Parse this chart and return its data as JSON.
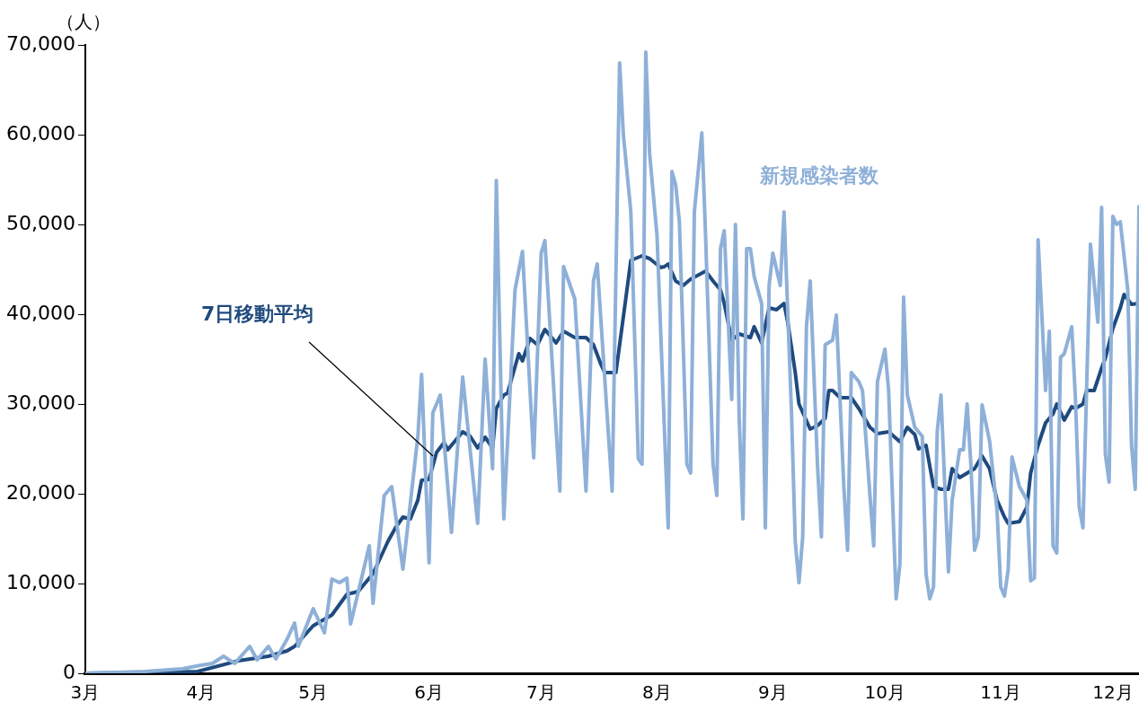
{
  "chart_data": {
    "type": "line",
    "ylabel": "（人）",
    "legend": false,
    "grid": false,
    "marker": "none",
    "line_style": "solid",
    "xlim": [
      "--03-01",
      "--12-08"
    ],
    "xticks": [
      {
        "value": "--03-01",
        "label": "3月"
      },
      {
        "value": "--04-01",
        "label": "4月"
      },
      {
        "value": "--05-01",
        "label": "5月"
      },
      {
        "value": "--06-01",
        "label": "6月"
      },
      {
        "value": "--07-01",
        "label": "7月"
      },
      {
        "value": "--08-01",
        "label": "8月"
      },
      {
        "value": "--09-01",
        "label": "9月"
      },
      {
        "value": "--10-01",
        "label": "10月"
      },
      {
        "value": "--11-01",
        "label": "11月"
      },
      {
        "value": "--12-01",
        "label": "12月"
      }
    ],
    "ylim": [
      0,
      70000
    ],
    "yticks": [
      0,
      {
        "value": 10000,
        "label": "10,000"
      },
      {
        "value": 20000,
        "label": "20,000"
      },
      {
        "value": 30000,
        "label": "30,000"
      },
      {
        "value": 40000,
        "label": "40,000"
      },
      {
        "value": 50000,
        "label": "50,000"
      },
      {
        "value": 60000,
        "label": "60,000"
      },
      {
        "value": 70000,
        "label": "70,000"
      }
    ],
    "series": [
      {
        "name": "新規感染者数",
        "color": "#8eb0d8",
        "x": [
          "--03-01",
          "--03-17",
          "--03-27",
          "--04-01",
          "--04-04",
          "--04-07",
          "--04-10",
          "--04-14",
          "--04-16",
          "--04-19",
          "--04-21",
          "--04-24",
          "--04-26",
          "--04-27",
          "--05-01",
          "--05-04",
          "--05-06",
          "--05-08",
          "--05-10",
          "--05-11",
          "--05-16",
          "--05-17",
          "--05-20",
          "--05-22",
          "--05-25",
          "--05-29",
          "--05-30",
          "--06-01",
          "--06-02",
          "--06-04",
          "--06-07",
          "--06-10",
          "--06-14",
          "--06-16",
          "--06-18",
          "--06-19",
          "--06-21",
          "--06-24",
          "--06-26",
          "--06-29",
          "--07-01",
          "--07-02",
          "--07-06",
          "--07-07",
          "--07-10",
          "--07-13",
          "--07-15",
          "--07-16",
          "--07-20",
          "--07-22",
          "--07-23",
          "--07-25",
          "--07-27",
          "--07-28",
          "--07-29",
          "--07-30",
          "--08-01",
          "--08-04",
          "--08-05",
          "--08-06",
          "--08-07",
          "--08-09",
          "--08-10",
          "--08-11",
          "--08-13",
          "--08-14",
          "--08-16",
          "--08-17",
          "--08-18",
          "--08-19",
          "--08-21",
          "--08-22",
          "--08-23",
          "--08-24",
          "--08-25",
          "--08-26",
          "--08-27",
          "--08-29",
          "--08-30",
          "--08-31",
          "--09-01",
          "--09-03",
          "--09-04",
          "--09-06",
          "--09-07",
          "--09-08",
          "--09-09",
          "--09-10",
          "--09-11",
          "--09-13",
          "--09-14",
          "--09-15",
          "--09-17",
          "--09-18",
          "--09-20",
          "--09-21",
          "--09-22",
          "--09-24",
          "--09-25",
          "--09-27",
          "--09-28",
          "--09-29",
          "--10-01",
          "--10-02",
          "--10-04",
          "--10-05",
          "--10-06",
          "--10-07",
          "--10-09",
          "--10-11",
          "--10-12",
          "--10-13",
          "--10-14",
          "--10-15",
          "--10-16",
          "--10-18",
          "--10-19",
          "--10-21",
          "--10-22",
          "--10-23",
          "--10-24",
          "--10-25",
          "--10-26",
          "--10-27",
          "--10-29",
          "--10-31",
          "--11-01",
          "--11-02",
          "--11-03",
          "--11-04",
          "--11-06",
          "--11-08",
          "--11-09",
          "--11-10",
          "--11-11",
          "--11-13",
          "--11-14",
          "--11-15",
          "--11-16",
          "--11-17",
          "--11-18",
          "--11-20",
          "--11-21",
          "--11-22",
          "--11-23",
          "--11-25",
          "--11-27",
          "--11-28",
          "--11-29",
          "--11-30",
          "--12-01",
          "--12-02",
          "--12-03",
          "--12-05",
          "--12-06",
          "--12-07",
          "--12-08"
        ],
        "values": [
          0,
          200,
          500,
          900,
          1100,
          1900,
          1100,
          3000,
          1500,
          3000,
          1600,
          3800,
          5600,
          3000,
          7200,
          4500,
          10500,
          10100,
          10600,
          5500,
          14200,
          7800,
          19800,
          20800,
          11600,
          26400,
          33300,
          12300,
          29000,
          31000,
          15700,
          33000,
          16700,
          35000,
          22800,
          54900,
          17200,
          42700,
          47000,
          24000,
          46800,
          48200,
          20300,
          45300,
          41700,
          20300,
          43700,
          45600,
          20300,
          68000,
          60000,
          51400,
          23900,
          23300,
          69200,
          58000,
          48800,
          16200,
          55900,
          54400,
          50300,
          23300,
          22300,
          51400,
          60200,
          48800,
          23300,
          19800,
          47300,
          49300,
          30500,
          50000,
          28400,
          17200,
          47300,
          47300,
          44200,
          41200,
          16200,
          43200,
          46800,
          43200,
          51400,
          29000,
          14700,
          10100,
          15200,
          38600,
          43700,
          22800,
          15200,
          36600,
          37100,
          39900,
          20800,
          13700,
          33500,
          32500,
          31500,
          19800,
          14200,
          32500,
          36100,
          31500,
          8300,
          12100,
          41900,
          31000,
          27400,
          26400,
          11100,
          8300,
          9600,
          26900,
          31000,
          11300,
          19300,
          24900,
          24900,
          30000,
          23300,
          13700,
          15200,
          29900,
          25900,
          18200,
          9600,
          8600,
          11600,
          24100,
          20800,
          19300,
          10300,
          10600,
          48300,
          31500,
          38100,
          14200,
          13400,
          35200,
          35600,
          38600,
          30500,
          18500,
          16200,
          47800,
          39100,
          51900,
          24400,
          21300,
          50900,
          50000,
          50300,
          42700,
          25400,
          20500,
          52000
        ]
      },
      {
        "name": "7日移動平均",
        "color": "#1f4a7e",
        "x": [
          "--03-01",
          "--03-31",
          "--04-11",
          "--04-19",
          "--04-24",
          "--04-26",
          "--05-01",
          "--05-06",
          "--05-10",
          "--05-13",
          "--05-17",
          "--05-21",
          "--05-23",
          "--05-25",
          "--05-27",
          "--05-29",
          "--05-30",
          "--06-01",
          "--06-03",
          "--06-05",
          "--06-06",
          "--06-10",
          "--06-12",
          "--06-14",
          "--06-16",
          "--06-18",
          "--06-19",
          "--06-21",
          "--06-22",
          "--06-25",
          "--06-26",
          "--06-28",
          "--06-30",
          "--07-02",
          "--07-05",
          "--07-07",
          "--07-10",
          "--07-13",
          "--07-15",
          "--07-17",
          "--07-18",
          "--07-21",
          "--07-23",
          "--07-25",
          "--07-28",
          "--07-30",
          "--08-02",
          "--08-03",
          "--08-04",
          "--08-06",
          "--08-08",
          "--08-10",
          "--08-14",
          "--08-16",
          "--08-18",
          "--08-19",
          "--08-21",
          "--08-23",
          "--08-26",
          "--08-27",
          "--08-29",
          "--08-31",
          "--09-02",
          "--09-04",
          "--09-05",
          "--09-07",
          "--09-08",
          "--09-11",
          "--09-13",
          "--09-15",
          "--09-16",
          "--09-17",
          "--09-19",
          "--09-22",
          "--09-24",
          "--09-27",
          "--09-29",
          "--10-02",
          "--10-05",
          "--10-07",
          "--10-09",
          "--10-10",
          "--10-12",
          "--10-14",
          "--10-16",
          "--10-18",
          "--10-19",
          "--10-21",
          "--10-25",
          "--10-27",
          "--10-29",
          "--10-31",
          "--11-02",
          "--11-03",
          "--11-06",
          "--11-08",
          "--11-09",
          "--11-11",
          "--11-13",
          "--11-15",
          "--11-16",
          "--11-18",
          "--11-20",
          "--11-21",
          "--11-23",
          "--11-24",
          "--11-26",
          "--11-28",
          "--11-29",
          "--12-01",
          "--12-03",
          "--12-04",
          "--12-06",
          "--12-08"
        ],
        "values": [
          0,
          200,
          1400,
          1900,
          2500,
          3000,
          5300,
          6500,
          8800,
          9100,
          11100,
          14700,
          16200,
          17400,
          17200,
          19300,
          21500,
          21600,
          24600,
          25700,
          24900,
          26900,
          26400,
          25100,
          26300,
          25100,
          29500,
          31000,
          31200,
          35600,
          34800,
          37300,
          36600,
          38300,
          36800,
          38100,
          37400,
          37400,
          36600,
          34400,
          33500,
          33500,
          39700,
          46000,
          46500,
          46200,
          45200,
          45300,
          45600,
          43700,
          43200,
          43900,
          44800,
          43700,
          42700,
          41200,
          37100,
          37800,
          37400,
          38600,
          36800,
          40700,
          40500,
          41200,
          39100,
          33500,
          30000,
          27200,
          27600,
          28400,
          31500,
          31500,
          30700,
          30700,
          29500,
          27400,
          26700,
          26900,
          25800,
          27400,
          26600,
          25000,
          25400,
          20800,
          20500,
          20500,
          22800,
          21800,
          22800,
          24200,
          22800,
          19300,
          17400,
          16700,
          16900,
          18500,
          22300,
          25400,
          27900,
          28900,
          30000,
          28200,
          29700,
          29500,
          30000,
          31500,
          31500,
          34000,
          35100,
          38400,
          40700,
          42200,
          41100,
          41200
        ]
      }
    ]
  }
}
